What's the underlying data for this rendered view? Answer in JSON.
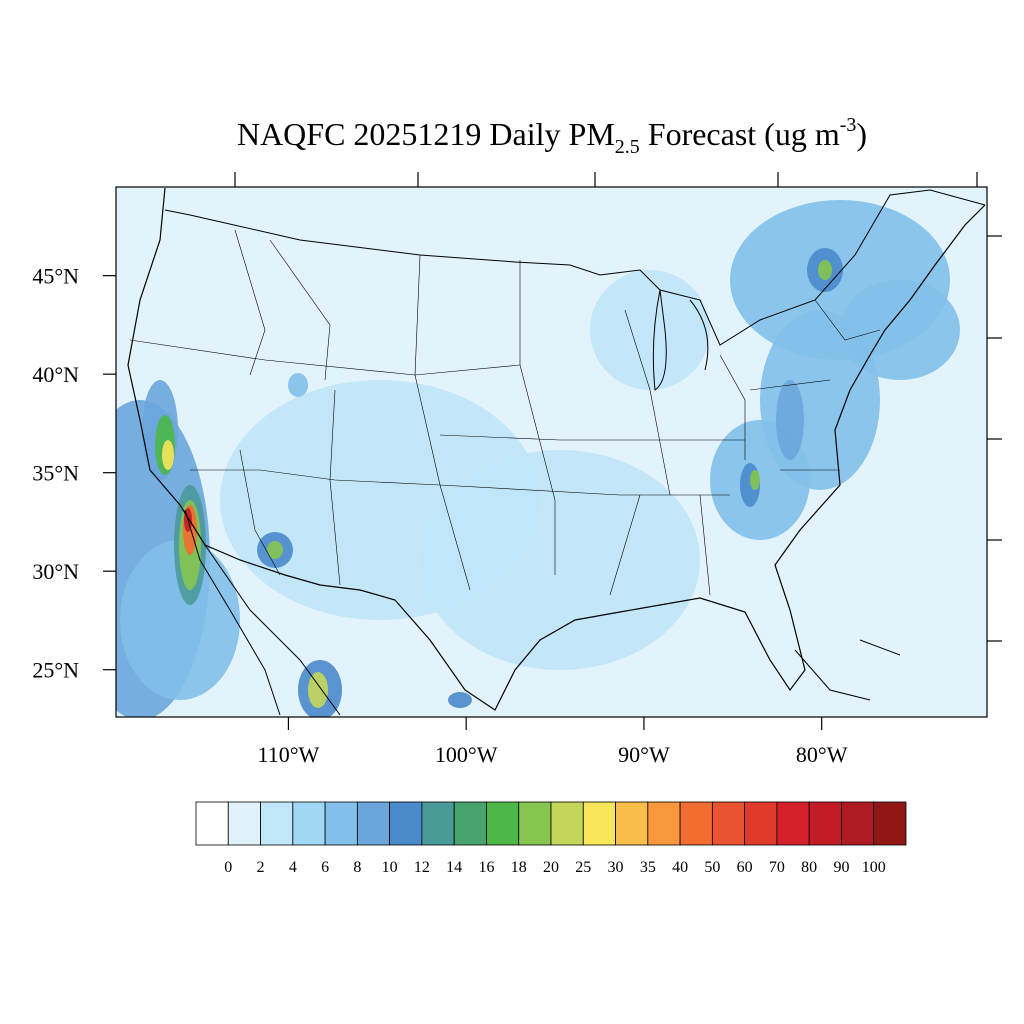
{
  "header": {
    "title_parts": [
      "NAQFC 20251219 Daily PM",
      "2.5",
      " Forecast (ug m",
      "-3",
      ")"
    ]
  },
  "map": {
    "xlim": [
      -119.7,
      -70.7
    ],
    "ylim": [
      22.6,
      49.5
    ],
    "xticks": [
      {
        "value": -110,
        "label": "110°W"
      },
      {
        "value": -100,
        "label": "100°W"
      },
      {
        "value": -90,
        "label": "90°W"
      },
      {
        "value": -80,
        "label": "80°W"
      }
    ],
    "yticks": [
      {
        "value": 45,
        "label": "45°N"
      },
      {
        "value": 40,
        "label": "40°N"
      },
      {
        "value": 35,
        "label": "35°N"
      },
      {
        "value": 30,
        "label": "30°N"
      },
      {
        "value": 25,
        "label": "25°N"
      }
    ]
  },
  "colorbar": {
    "levels": [
      0,
      2,
      4,
      6,
      8,
      10,
      12,
      14,
      16,
      18,
      20,
      25,
      30,
      35,
      40,
      50,
      60,
      70,
      80,
      90,
      100
    ],
    "colors": [
      "#ffffff",
      "#dff2fb",
      "#c0e6f8",
      "#a0d8f4",
      "#82c0ea",
      "#6aa6dc",
      "#4a8acb",
      "#4a9a9a",
      "#48a46c",
      "#4db848",
      "#85c550",
      "#c4d65a",
      "#f7e55a",
      "#f9bd4a",
      "#f7983c",
      "#f36c30",
      "#ea5330",
      "#e03b2a",
      "#d42029",
      "#c21c26",
      "#ad1a22",
      "#911717"
    ]
  }
}
